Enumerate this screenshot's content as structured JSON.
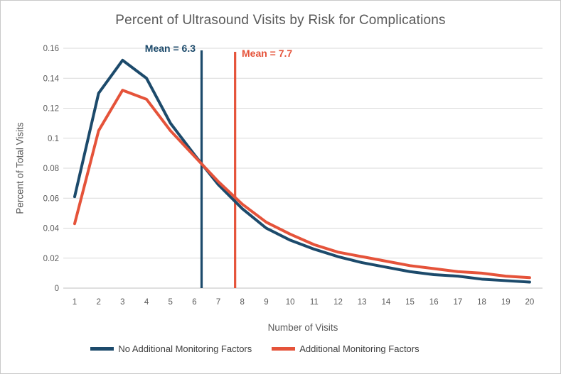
{
  "frame": {
    "background": "#ffffff",
    "border_color": "#c9c9c9"
  },
  "chart_data": {
    "type": "line",
    "title": "Percent of Ultrasound Visits by Risk for Complications",
    "xlabel": "Number of Visits",
    "ylabel": "Percent of Total Visits",
    "x": [
      1,
      2,
      3,
      4,
      5,
      6,
      7,
      8,
      9,
      10,
      11,
      12,
      13,
      14,
      15,
      16,
      17,
      18,
      19,
      20
    ],
    "series": [
      {
        "name": "No Additional Monitoring Factors",
        "color": "#1c4a6b",
        "values": [
          0.061,
          0.13,
          0.152,
          0.14,
          0.11,
          0.089,
          0.069,
          0.053,
          0.04,
          0.032,
          0.026,
          0.021,
          0.017,
          0.014,
          0.011,
          0.009,
          0.008,
          0.006,
          0.005,
          0.004
        ]
      },
      {
        "name": "Additional Monitoring Factors",
        "color": "#e5533a",
        "values": [
          0.043,
          0.105,
          0.132,
          0.126,
          0.105,
          0.088,
          0.071,
          0.056,
          0.044,
          0.036,
          0.029,
          0.024,
          0.021,
          0.018,
          0.015,
          0.013,
          0.011,
          0.01,
          0.008,
          0.007
        ]
      }
    ],
    "annotations": [
      {
        "label": "Mean = 6.3",
        "x": 6.3,
        "color": "#1c4a6b"
      },
      {
        "label": "Mean = 7.7",
        "x": 7.7,
        "color": "#e5533a"
      }
    ],
    "ylim": [
      0,
      0.16
    ],
    "ytick_labels": [
      "0",
      "0.02",
      "0.04",
      "0.06",
      "0.08",
      "0.1",
      "0.12",
      "0.14",
      "0.16"
    ],
    "grid": true,
    "legend_position": "bottom"
  },
  "styles": {
    "title_color": "#595959",
    "tick_color": "#595959",
    "gridline_color": "#d9d9d9",
    "axis_line_color": "#bfbfbf",
    "legend_text_color": "#404040"
  }
}
